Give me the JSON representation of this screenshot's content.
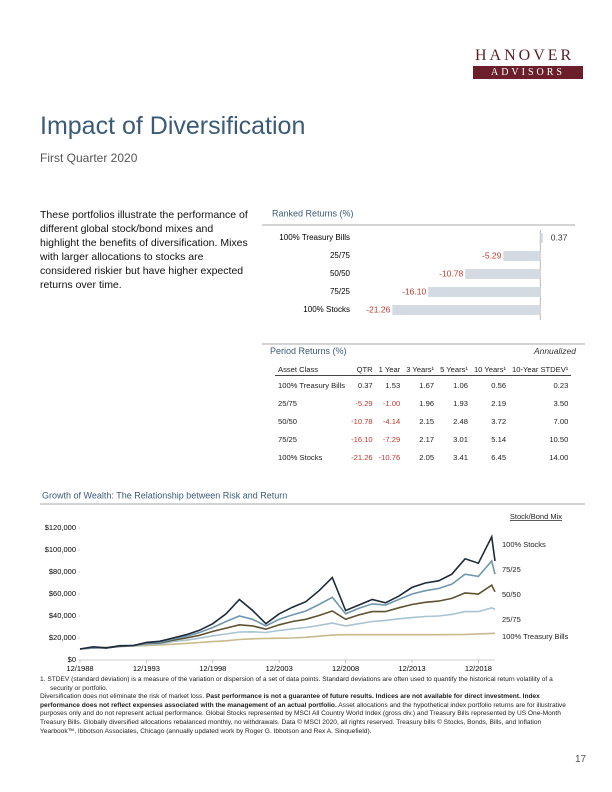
{
  "header": {
    "logo_top": "HANOVER",
    "logo_bottom": "ADVISORS"
  },
  "title": "Impact of Diversification",
  "subtitle": "First Quarter 2020",
  "intro": "These portfolios illustrate the performance of different global stock/bond mixes and highlight the benefits of diversification. Mixes with larger allocations to stocks are considered riskier but have higher expected returns over time.",
  "chart_data": [
    {
      "type": "hbar",
      "title": "Ranked Returns (%)",
      "categories": [
        "100% Treasury Bills",
        "25/75",
        "50/50",
        "75/25",
        "100% Stocks"
      ],
      "values": [
        0.37,
        -5.29,
        -10.78,
        -16.1,
        -21.26
      ],
      "value_labels": [
        "0.37",
        "-5.29",
        "-10.78",
        "-16.10",
        "-21.26"
      ],
      "xlim": [
        -40,
        4
      ],
      "color": "#d3dae2",
      "negative_label_color": "#c0392b",
      "positive_label_color": "#333333"
    },
    {
      "type": "line",
      "title": "Growth of Wealth: The Relationship between Risk and Return",
      "legend_title": "Stock/Bond Mix",
      "legend": "right",
      "x": [
        "12/1988",
        "12/1989",
        "12/1990",
        "12/1991",
        "12/1992",
        "12/1993",
        "12/1994",
        "12/1995",
        "12/1996",
        "12/1997",
        "12/1998",
        "12/1999",
        "12/2000",
        "12/2001",
        "12/2002",
        "12/2003",
        "12/2004",
        "12/2005",
        "12/2006",
        "12/2007",
        "12/2008",
        "12/2009",
        "12/2010",
        "12/2011",
        "12/2012",
        "12/2013",
        "12/2014",
        "12/2015",
        "12/2016",
        "12/2017",
        "12/2018",
        "12/2019",
        "3/2020"
      ],
      "xlim": [
        "12/1988",
        "3/2020"
      ],
      "xticks": [
        "12/1988",
        "12/1993",
        "12/1998",
        "12/2003",
        "12/2008",
        "12/2013",
        "12/2018"
      ],
      "ylim": [
        0,
        120000
      ],
      "yticks": [
        {
          "value": 0,
          "label": "$0"
        },
        {
          "value": 20000,
          "label": "$20,000"
        },
        {
          "value": 40000,
          "label": "$40,000"
        },
        {
          "value": 60000,
          "label": "$60,000"
        },
        {
          "value": 80000,
          "label": "$80,000"
        },
        {
          "value": 100000,
          "label": "$100,000"
        },
        {
          "value": 120000,
          "label": "$120,000"
        }
      ],
      "series": [
        {
          "name": "100% Stocks",
          "color": "#1c2a3a",
          "values": [
            10000,
            12000,
            11000,
            13000,
            13000,
            16000,
            17000,
            20000,
            23000,
            27000,
            33000,
            42000,
            55000,
            45000,
            33000,
            42000,
            48000,
            53000,
            63000,
            75000,
            45000,
            50000,
            55000,
            52000,
            58000,
            66000,
            70000,
            72000,
            78000,
            92000,
            88000,
            112000,
            90000
          ]
        },
        {
          "name": "75/25",
          "color": "#6f97ad",
          "values": [
            10000,
            11500,
            11000,
            12800,
            13300,
            15500,
            16000,
            19000,
            21500,
            25000,
            29500,
            35000,
            40000,
            37000,
            31000,
            37000,
            41000,
            44500,
            50500,
            57000,
            42000,
            47000,
            51000,
            50000,
            55000,
            60000,
            63000,
            65000,
            69000,
            78000,
            76000,
            90000,
            78000
          ]
        },
        {
          "name": "50/50",
          "color": "#5e5230",
          "values": [
            10000,
            11200,
            11000,
            12500,
            13200,
            15000,
            15500,
            18000,
            20000,
            22500,
            26000,
            29000,
            32000,
            31000,
            28000,
            32000,
            35000,
            37000,
            40500,
            44500,
            37000,
            41000,
            44000,
            44000,
            47500,
            50500,
            52500,
            53500,
            56000,
            61000,
            60000,
            68000,
            62000
          ]
        },
        {
          "name": "25/75",
          "color": "#a9c3d1",
          "values": [
            10000,
            11000,
            11100,
            12200,
            13000,
            14200,
            14600,
            16800,
            18000,
            19800,
            22000,
            23600,
            25500,
            25600,
            25000,
            26800,
            28300,
            29500,
            31500,
            33500,
            31000,
            33000,
            35000,
            36000,
            37500,
            38500,
            39500,
            40000,
            41500,
            44000,
            44000,
            47500,
            46000
          ]
        },
        {
          "name": "100% Treasury Bills",
          "color": "#c8b98e",
          "values": [
            10000,
            10800,
            11600,
            12300,
            12700,
            13100,
            13600,
            14400,
            15100,
            15900,
            16700,
            17500,
            18600,
            19300,
            19600,
            19800,
            20000,
            20600,
            21600,
            22600,
            23000,
            23000,
            23000,
            23000,
            23000,
            23000,
            23000,
            23000,
            23100,
            23300,
            23700,
            24200,
            24300
          ]
        }
      ]
    }
  ],
  "period_returns": {
    "title": "Period Returns (%)",
    "note": "Annualized",
    "columns": [
      "Asset Class",
      "QTR",
      "1 Year",
      "3 Years¹",
      "5 Years¹",
      "10 Years¹",
      "10-Year STDEV¹"
    ],
    "rows": [
      [
        "100% Treasury Bills",
        "0.37",
        "1.53",
        "1.67",
        "1.06",
        "0.56",
        "0.23"
      ],
      [
        "25/75",
        "-5.29",
        "-1.00",
        "1.96",
        "1.93",
        "2.19",
        "3.50"
      ],
      [
        "50/50",
        "-10.78",
        "-4.14",
        "2.15",
        "2.48",
        "3.72",
        "7.00"
      ],
      [
        "75/25",
        "-16.10",
        "-7.29",
        "2.17",
        "3.01",
        "5.14",
        "10.50"
      ],
      [
        "100% Stocks",
        "-21.26",
        "-10.76",
        "2.05",
        "3.41",
        "6.45",
        "14.00"
      ]
    ]
  },
  "footnote": "1. STDEV (standard deviation) is a measure of the variation or dispersion of a set of data points. Standard deviations are often used to quantify the historical return volatility of a security or portfolio.",
  "disclosure": [
    "Diversification does not eliminate the risk of market loss.",
    "Past performance is not a guarantee of future results. Indices are not available for direct investment. Index performance does not reflect expenses associated with the management of an actual portfolio.",
    "Asset allocations and the hypothetical index portfolio returns are for illustrative purposes only and do not represent actual performance. Global Stocks represented by MSCI All Country World Index (gross div.) and Treasury Bills represented by US One-Month Treasury Bills. Globally diversified allocations rebalanced monthly, no withdrawals. Data © MSCI 2020, all rights reserved. Treasury bills © Stocks, Bonds, Bills, and Inflation Yearbook™, Ibbotson Associates, Chicago (annually updated work by Roger G. Ibbotson and Rex A. Sinquefield)."
  ],
  "page_number": "17"
}
